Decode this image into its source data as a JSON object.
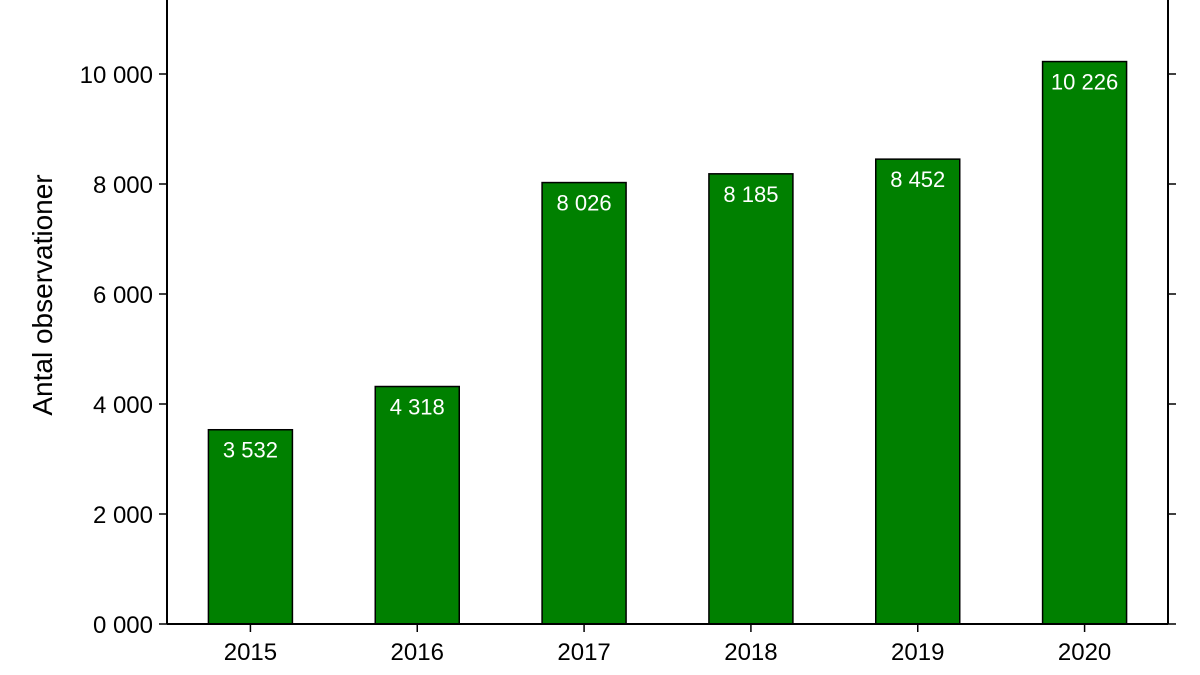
{
  "chart_data": {
    "type": "bar",
    "categories": [
      "2015",
      "2016",
      "2017",
      "2018",
      "2019",
      "2020"
    ],
    "values": [
      3532,
      4318,
      8026,
      8185,
      8452,
      10226
    ],
    "value_labels": [
      "3 532",
      "4 318",
      "8 026",
      "8 185",
      "8 452",
      "10 226"
    ],
    "title": "",
    "xlabel": "",
    "ylabel": "Antal observationer",
    "ylim": [
      0,
      11500
    ],
    "yticks": [
      0,
      2000,
      4000,
      6000,
      8000,
      10000
    ],
    "ytick_labels": [
      "0 000",
      "2 000",
      "4 000",
      "6 000",
      "8 000",
      "10 000"
    ],
    "grid": false,
    "legend": "none",
    "bar_color": "#008000",
    "bar_edge_color": "#000000"
  }
}
